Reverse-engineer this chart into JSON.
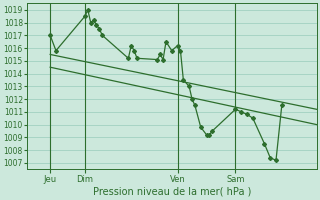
{
  "bg_color": "#cce8dc",
  "grid_color": "#99ccbb",
  "line_color": "#2d6e2d",
  "xlabel": "Pression niveau de la mer( hPa )",
  "ylim": [
    1006.5,
    1019.5
  ],
  "yticks": [
    1007,
    1008,
    1009,
    1010,
    1011,
    1012,
    1013,
    1014,
    1015,
    1016,
    1017,
    1018,
    1019
  ],
  "xlim": [
    0,
    100
  ],
  "xtick_labels": [
    "Jeu",
    "Dim",
    "Ven",
    "Sam"
  ],
  "xtick_positions": [
    8,
    20,
    52,
    72
  ],
  "vlines": [
    8,
    20,
    52,
    72
  ],
  "series1_x": [
    8,
    10,
    20,
    21,
    22,
    23,
    24,
    25,
    26,
    35,
    36,
    37,
    38,
    45,
    46,
    47,
    48,
    50,
    52,
    53,
    54,
    56,
    57,
    58,
    60,
    62,
    63,
    64,
    72,
    74,
    76,
    78,
    82,
    84,
    86,
    88
  ],
  "series1_y": [
    1017.0,
    1015.8,
    1018.5,
    1019.0,
    1018.0,
    1018.2,
    1017.8,
    1017.5,
    1017.0,
    1015.2,
    1016.2,
    1015.8,
    1015.2,
    1015.1,
    1015.5,
    1015.1,
    1016.5,
    1015.8,
    1016.2,
    1015.8,
    1013.5,
    1013.0,
    1012.0,
    1011.5,
    1009.8,
    1009.2,
    1009.2,
    1009.5,
    1011.2,
    1011.0,
    1010.8,
    1010.5,
    1008.5,
    1007.4,
    1007.2,
    1011.5
  ],
  "series2_x": [
    8,
    100
  ],
  "series2_y": [
    1015.5,
    1011.2
  ],
  "series3_x": [
    8,
    100
  ],
  "series3_y": [
    1014.5,
    1010.0
  ],
  "xlabel_fontsize": 7,
  "ytick_fontsize": 5.5,
  "xtick_fontsize": 6
}
